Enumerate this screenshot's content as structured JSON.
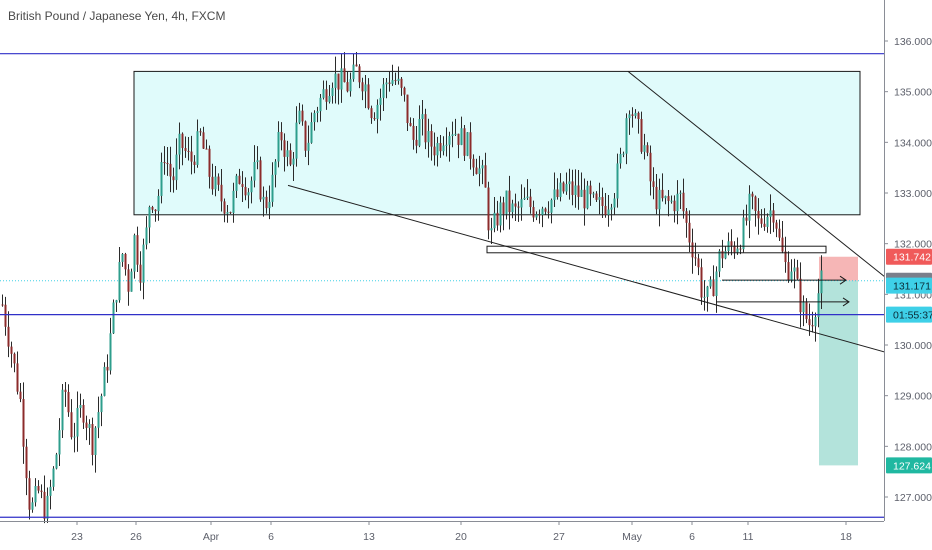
{
  "chart_data": {
    "type": "candlestick",
    "title": "British Pound / Japanese Yen, 4h, FXCM",
    "ylim": [
      126.5,
      136.5
    ],
    "y_ticks": [
      127,
      128,
      129,
      130,
      131,
      132,
      133,
      134,
      135,
      136
    ],
    "y_tick_labels": [
      "127.000",
      "128.000",
      "129.000",
      "130.000",
      "131.000",
      "132.000",
      "133.000",
      "134.000",
      "135.000",
      "136.000"
    ],
    "x_labels": [
      "23",
      "26",
      "Apr",
      "6",
      "13",
      "20",
      "27",
      "May",
      "6",
      "11",
      "18"
    ],
    "grid": false,
    "legend": "none",
    "colors": {
      "up": "#2e9e8c",
      "down": "#8c2b2b",
      "zone_fill": "#e0fbfb",
      "level_line": "#3030c8",
      "trendline": "#1f1f1f",
      "stop_zone": "#f4a9a9",
      "target_zone": "#a6ded5",
      "dotted_price": "#41d0e6"
    },
    "candles_anchor_path": [
      [
        0,
        131.0
      ],
      [
        8,
        130.2
      ],
      [
        20,
        128.9
      ],
      [
        30,
        126.7
      ],
      [
        38,
        127.1
      ],
      [
        46,
        126.7
      ],
      [
        55,
        127.7
      ],
      [
        64,
        129.2
      ],
      [
        72,
        128.2
      ],
      [
        82,
        128.8
      ],
      [
        92,
        128.1
      ],
      [
        100,
        128.9
      ],
      [
        108,
        129.8
      ],
      [
        115,
        131.0
      ],
      [
        122,
        131.8
      ],
      [
        128,
        131.2
      ],
      [
        134,
        132.1
      ],
      [
        140,
        131.5
      ],
      [
        146,
        132.2
      ],
      [
        150,
        133.0
      ],
      [
        156,
        132.7
      ],
      [
        164,
        133.8
      ],
      [
        172,
        133.2
      ],
      [
        180,
        134.0
      ],
      [
        190,
        133.6
      ],
      [
        200,
        134.1
      ],
      [
        210,
        133.3
      ],
      [
        220,
        132.9
      ],
      [
        230,
        132.7
      ],
      [
        240,
        133.4
      ],
      [
        248,
        133.1
      ],
      [
        256,
        133.5
      ],
      [
        264,
        132.7
      ],
      [
        272,
        133.2
      ],
      [
        280,
        134.2
      ],
      [
        290,
        133.5
      ],
      [
        298,
        134.5
      ],
      [
        306,
        133.9
      ],
      [
        314,
        134.6
      ],
      [
        324,
        135.0
      ],
      [
        332,
        135.3
      ],
      [
        340,
        135.2
      ],
      [
        348,
        135.1
      ],
      [
        356,
        135.4
      ],
      [
        364,
        135.2
      ],
      [
        372,
        134.6
      ],
      [
        380,
        134.9
      ],
      [
        388,
        135.3
      ],
      [
        396,
        135.2
      ],
      [
        404,
        134.8
      ],
      [
        412,
        134.0
      ],
      [
        420,
        134.4
      ],
      [
        428,
        134.0
      ],
      [
        436,
        133.9
      ],
      [
        444,
        134.2
      ],
      [
        452,
        134.3
      ],
      [
        460,
        134.1
      ],
      [
        468,
        133.9
      ],
      [
        476,
        133.6
      ],
      [
        484,
        133.2
      ],
      [
        490,
        132.1
      ],
      [
        498,
        132.6
      ],
      [
        506,
        132.8
      ],
      [
        514,
        132.6
      ],
      [
        524,
        132.8
      ],
      [
        534,
        132.7
      ],
      [
        544,
        132.8
      ],
      [
        556,
        132.9
      ],
      [
        566,
        133.1
      ],
      [
        576,
        133.0
      ],
      [
        586,
        132.9
      ],
      [
        596,
        132.7
      ],
      [
        606,
        132.8
      ],
      [
        614,
        133.1
      ],
      [
        622,
        133.8
      ],
      [
        628,
        134.9
      ],
      [
        636,
        134.3
      ],
      [
        644,
        133.9
      ],
      [
        652,
        133.0
      ],
      [
        660,
        132.8
      ],
      [
        670,
        132.8
      ],
      [
        680,
        132.9
      ],
      [
        688,
        132.2
      ],
      [
        696,
        131.7
      ],
      [
        702,
        131.0
      ],
      [
        708,
        130.9
      ],
      [
        714,
        131.3
      ],
      [
        720,
        131.8
      ],
      [
        728,
        131.9
      ],
      [
        736,
        132.0
      ],
      [
        744,
        132.3
      ],
      [
        750,
        132.8
      ],
      [
        758,
        132.4
      ],
      [
        766,
        132.6
      ],
      [
        774,
        132.7
      ],
      [
        780,
        131.9
      ],
      [
        786,
        131.5
      ],
      [
        792,
        131.6
      ],
      [
        798,
        131.0
      ],
      [
        804,
        130.6
      ],
      [
        810,
        130.4
      ],
      [
        816,
        130.9
      ],
      [
        822,
        131.3
      ]
    ],
    "consolidation_zone": {
      "top": 135.4,
      "bottom": 132.57
    },
    "horizontal_levels": [
      135.75,
      130.6,
      126.6
    ],
    "descending_resistance": {
      "from": [
        628,
        135.4
      ],
      "to": [
        932,
        130.6
      ]
    },
    "descending_support": {
      "from": [
        288,
        133.15
      ],
      "to": [
        932,
        129.6
      ]
    },
    "inner_support_lines": [
      131.95,
      131.82
    ],
    "position_tool": {
      "entry": 131.268,
      "stop": 131.742,
      "target": 127.624,
      "tags": [
        {
          "value": 131.742,
          "label": "131.742",
          "bg": "#f05a5a",
          "color": "#ffffff"
        },
        {
          "value": 131.268,
          "label": "131.268",
          "bg": "#7b7f8b",
          "color": "#ffffff"
        },
        {
          "value": 131.171,
          "label": "131.171",
          "bg": "#3ed0e8",
          "color": "#0b2a36"
        },
        {
          "value": 130.6,
          "label": "01:55:37",
          "bg": "#3ed0e8",
          "color": "#0b2a36"
        },
        {
          "value": 127.624,
          "label": "127.624",
          "bg": "#20b8a1",
          "color": "#ffffff"
        }
      ]
    },
    "last_price": 131.171
  }
}
